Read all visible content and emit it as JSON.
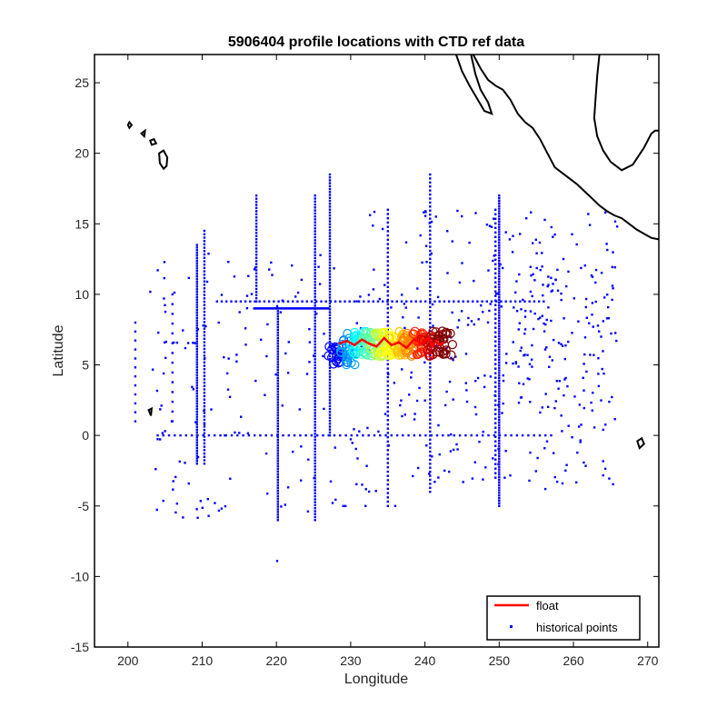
{
  "chart_data": {
    "type": "scatter",
    "title": "5906404 profile locations with CTD ref data",
    "xlabel": "Longitude",
    "ylabel": "Latitude",
    "xlim": [
      195.5,
      271.5
    ],
    "ylim": [
      -15,
      27
    ],
    "xticks": [
      "200",
      "210",
      "220",
      "230",
      "240",
      "250",
      "260",
      "270"
    ],
    "yticks": [
      "-15",
      "-10",
      "-5",
      "0",
      "5",
      "10",
      "15",
      "20",
      "25"
    ],
    "grid": false,
    "legend_position": "bottom-right",
    "colors": {
      "historical": "#0000ff",
      "float": "#ff0000",
      "coast": "#000000"
    },
    "series": [
      {
        "name": "float",
        "style": "line",
        "x": [
          228.4,
          229.5,
          230.5,
          231.5,
          232.5,
          233.5,
          234.5,
          235.5,
          236.5,
          237.5,
          238.5,
          239.5,
          240.5,
          241.0,
          241.5,
          242.0,
          242.5
        ],
        "y": [
          6.5,
          6.7,
          6.4,
          6.8,
          6.5,
          6.3,
          6.9,
          6.4,
          6.6,
          6.2,
          6.8,
          6.5,
          6.9,
          6.3,
          6.7,
          6.4,
          6.6
        ]
      },
      {
        "name": "historical points",
        "style": "dots",
        "groups": [
          {
            "kind": "line",
            "x0": 212,
            "y0": 9.5,
            "x1": 256,
            "y1": 9.5,
            "n": 70
          },
          {
            "kind": "line",
            "x0": 217,
            "y0": 9.0,
            "x1": 227,
            "y1": 9.0,
            "n": 60
          },
          {
            "kind": "line",
            "x0": 204,
            "y0": 0,
            "x1": 257,
            "y1": 0,
            "n": 70
          },
          {
            "kind": "line",
            "x0": 225.2,
            "y0": -6,
            "x1": 225.2,
            "y1": 17,
            "n": 110
          },
          {
            "kind": "line",
            "x0": 227.2,
            "y0": 0,
            "x1": 227.2,
            "y1": 18.5,
            "n": 90
          },
          {
            "kind": "line",
            "x0": 217.3,
            "y0": 9.5,
            "x1": 217.3,
            "y1": 17,
            "n": 35
          },
          {
            "kind": "line",
            "x0": 220.2,
            "y0": -6,
            "x1": 220.2,
            "y1": 9,
            "n": 80
          },
          {
            "kind": "line",
            "x0": 209.3,
            "y0": -2,
            "x1": 209.3,
            "y1": 13.5,
            "n": 85
          },
          {
            "kind": "line",
            "x0": 210.3,
            "y0": -2,
            "x1": 210.3,
            "y1": 14.5,
            "n": 70
          },
          {
            "kind": "line",
            "x0": 250.0,
            "y0": -5,
            "x1": 250.0,
            "y1": 17,
            "n": 120
          },
          {
            "kind": "line",
            "x0": 249.5,
            "y0": -3,
            "x1": 249.5,
            "y1": 16,
            "n": 60
          },
          {
            "kind": "line",
            "x0": 235.0,
            "y0": -5,
            "x1": 235.0,
            "y1": 16,
            "n": 70
          },
          {
            "kind": "line",
            "x0": 240.7,
            "y0": -4,
            "x1": 240.7,
            "y1": 18.5,
            "n": 80
          },
          {
            "kind": "line",
            "x0": 201,
            "y0": 1,
            "x1": 201,
            "y1": 8,
            "n": 12
          },
          {
            "kind": "line",
            "x0": 206,
            "y0": 1,
            "x1": 206,
            "y1": 10,
            "n": 14
          },
          {
            "kind": "scatter",
            "x0": 230,
            "x1": 266,
            "y0": -4,
            "y1": 16,
            "n": 300,
            "seed": 11
          },
          {
            "kind": "scatter",
            "x0": 203,
            "x1": 228,
            "y0": -6,
            "y1": 13,
            "n": 140,
            "seed": 23
          },
          {
            "kind": "scatter",
            "x0": 252,
            "x1": 266,
            "y0": 2,
            "y1": 12,
            "n": 90,
            "seed": 37
          },
          {
            "kind": "points",
            "x": [
              220.1
            ],
            "y": [
              -8.9
            ]
          },
          {
            "kind": "points",
            "x": [
              229,
              229.3,
              232,
              236
            ],
            "y": [
              -5,
              -5,
              -5,
              -5
            ]
          }
        ]
      }
    ],
    "float_color_cloud": {
      "x0": 227.5,
      "x1": 243.0,
      "y_center": 6.5,
      "spread": 0.9,
      "palette": [
        "#0000ff",
        "#00a0ff",
        "#00ffff",
        "#60ff9f",
        "#c0ff40",
        "#ffff00",
        "#ffc000",
        "#ff8000",
        "#ff2000",
        "#c00000",
        "#800000"
      ]
    },
    "coastlines": {
      "mexico": [
        [
          246.5,
          27
        ],
        [
          247.5,
          26
        ],
        [
          248.5,
          25.2
        ],
        [
          249.5,
          24.8
        ],
        [
          250.5,
          24.5
        ],
        [
          251.5,
          23.8
        ],
        [
          252.5,
          22.8
        ],
        [
          253.5,
          22.2
        ],
        [
          254.5,
          21.8
        ],
        [
          255.5,
          21.0
        ],
        [
          256.5,
          20.0
        ],
        [
          257.5,
          19.0
        ],
        [
          258.5,
          18.6
        ],
        [
          259.5,
          18.2
        ],
        [
          260.5,
          17.8
        ],
        [
          261.5,
          17.3
        ],
        [
          262.5,
          16.8
        ],
        [
          263.5,
          16.3
        ],
        [
          264.5,
          15.9
        ],
        [
          265.5,
          15.6
        ],
        [
          266.5,
          15.4
        ],
        [
          267.5,
          15.0
        ],
        [
          268.5,
          14.6
        ],
        [
          269.5,
          14.3
        ],
        [
          270.5,
          14.0
        ],
        [
          271.5,
          13.9
        ]
      ],
      "baja": [
        [
          244.2,
          27
        ],
        [
          245.0,
          25.8
        ],
        [
          246.0,
          24.8
        ],
        [
          247.0,
          23.9
        ],
        [
          248.0,
          23.0
        ],
        [
          249.0,
          22.8
        ],
        [
          248.5,
          23.6
        ],
        [
          247.5,
          24.5
        ],
        [
          246.8,
          25.6
        ],
        [
          246.2,
          27
        ]
      ],
      "gulf": [
        [
          263.5,
          27
        ],
        [
          263.2,
          25.5
        ],
        [
          263.0,
          24.0
        ],
        [
          262.8,
          22.5
        ],
        [
          263.2,
          21.2
        ],
        [
          264.0,
          20.2
        ],
        [
          265.0,
          19.4
        ],
        [
          266.5,
          18.8
        ],
        [
          268.0,
          19.2
        ],
        [
          269.5,
          20.4
        ],
        [
          270.5,
          21.4
        ],
        [
          271.0,
          21.6
        ],
        [
          271.5,
          21.6
        ]
      ],
      "hawaii": [
        [
          [
            200.0,
            22.0
          ],
          [
            200.2,
            22.2
          ],
          [
            200.5,
            22.0
          ],
          [
            200.2,
            21.8
          ],
          [
            200.0,
            22.0
          ]
        ],
        [
          [
            201.8,
            21.4
          ],
          [
            202.3,
            21.6
          ],
          [
            202.2,
            21.2
          ],
          [
            201.8,
            21.4
          ]
        ],
        [
          [
            203.0,
            20.9
          ],
          [
            203.5,
            21.0
          ],
          [
            203.8,
            20.7
          ],
          [
            203.2,
            20.6
          ],
          [
            203.0,
            20.9
          ]
        ],
        [
          [
            204.2,
            20.0
          ],
          [
            204.8,
            20.2
          ],
          [
            205.3,
            19.7
          ],
          [
            205.2,
            19.1
          ],
          [
            204.8,
            18.9
          ],
          [
            204.3,
            19.3
          ],
          [
            204.2,
            20.0
          ]
        ]
      ],
      "islands": [
        [
          [
            202.8,
            1.8
          ],
          [
            203.2,
            1.9
          ],
          [
            203.1,
            1.4
          ],
          [
            202.8,
            1.8
          ]
        ],
        [
          [
            268.6,
            -0.4
          ],
          [
            269.2,
            -0.2
          ],
          [
            269.5,
            -0.6
          ],
          [
            268.9,
            -0.9
          ],
          [
            268.6,
            -0.4
          ]
        ]
      ]
    },
    "legend": {
      "float_label": "float",
      "historical_label": "historical points"
    }
  }
}
